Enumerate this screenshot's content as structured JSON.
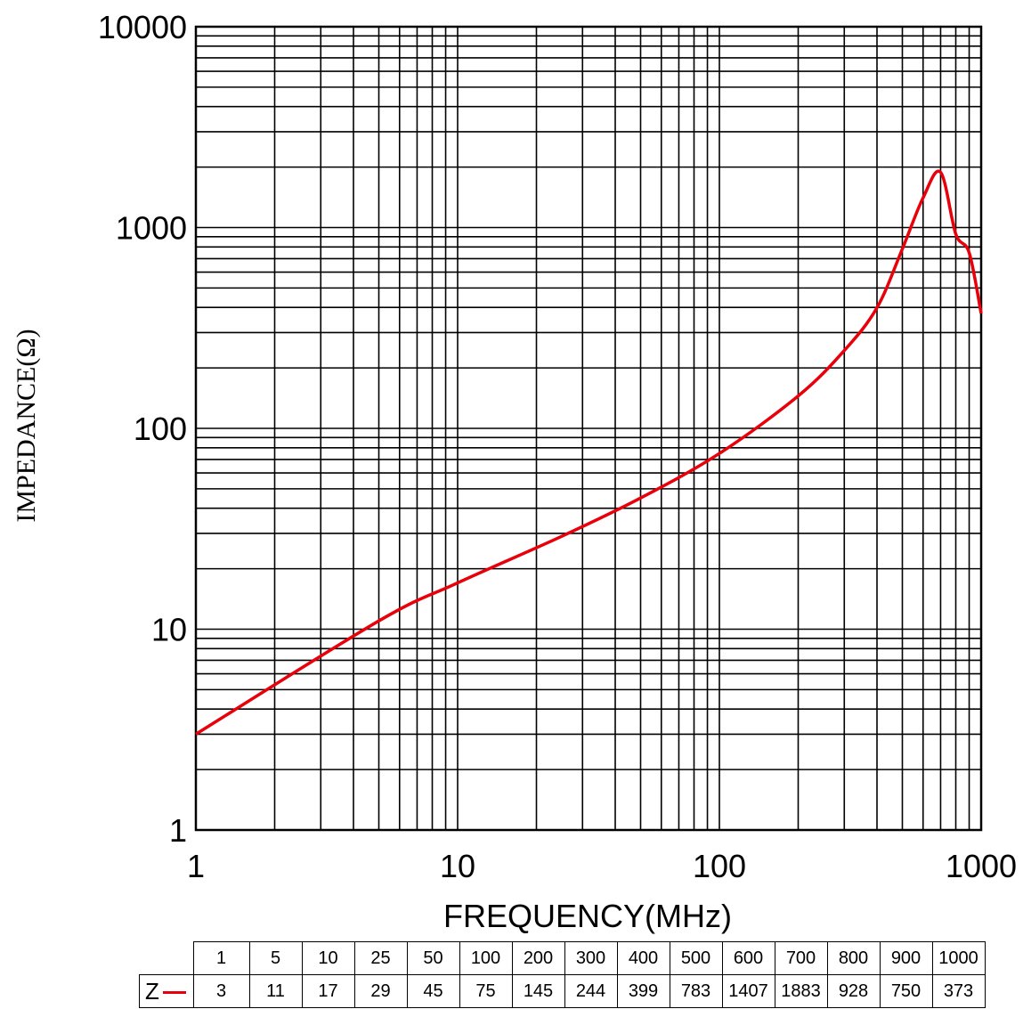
{
  "chart_data": {
    "type": "line",
    "x_scale": "log",
    "y_scale": "log",
    "xlim": [
      1,
      1000
    ],
    "ylim": [
      1,
      10000
    ],
    "xlabel": "FREQUENCY(MHz)",
    "ylabel": "IMPEDANCE(Ω)",
    "x_tick_labels": [
      "1",
      "10",
      "100",
      "1000"
    ],
    "y_tick_labels": [
      "1",
      "10",
      "100",
      "1000",
      "10000"
    ],
    "grid": true,
    "series": [
      {
        "name": "Z",
        "color": "#e8000b",
        "x": [
          1,
          5,
          10,
          25,
          50,
          100,
          200,
          300,
          400,
          500,
          600,
          700,
          800,
          900,
          1000
        ],
        "y": [
          3,
          11,
          17,
          29,
          45,
          75,
          145,
          244,
          399,
          783,
          1407,
          1883,
          928,
          750,
          373
        ]
      }
    ]
  },
  "table": {
    "row_label": "Z",
    "frequencies": [
      "1",
      "5",
      "10",
      "25",
      "50",
      "100",
      "200",
      "300",
      "400",
      "500",
      "600",
      "700",
      "800",
      "900",
      "1000"
    ],
    "values": [
      "3",
      "11",
      "17",
      "29",
      "45",
      "75",
      "145",
      "244",
      "399",
      "783",
      "1407",
      "1883",
      "928",
      "750",
      "373"
    ]
  }
}
